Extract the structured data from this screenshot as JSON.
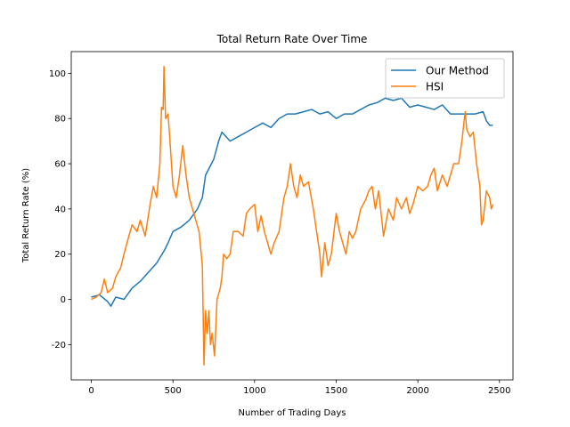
{
  "chart_data": {
    "type": "line",
    "title": "Total Return Rate Over Time",
    "x_label": "Number of Trading Days",
    "y_label": "Total Return Rate (%)",
    "xlim": [
      -123,
      2583
    ],
    "ylim": [
      -35.6,
      109.6
    ],
    "xticks": [
      0,
      500,
      1000,
      1500,
      2000,
      2500
    ],
    "yticks": [
      -20,
      0,
      20,
      40,
      60,
      80,
      100
    ],
    "legend": "upper right",
    "grid": false,
    "series": [
      {
        "name": "Our Method",
        "color": "#1f77b4",
        "x": [
          0,
          50,
          100,
          120,
          150,
          200,
          250,
          300,
          350,
          400,
          450,
          470,
          500,
          550,
          600,
          650,
          680,
          700,
          750,
          780,
          800,
          850,
          900,
          950,
          1000,
          1050,
          1100,
          1150,
          1200,
          1250,
          1300,
          1350,
          1400,
          1450,
          1500,
          1550,
          1600,
          1650,
          1700,
          1750,
          1800,
          1850,
          1900,
          1950,
          2000,
          2050,
          2100,
          2150,
          2200,
          2250,
          2300,
          2350,
          2400,
          2420,
          2440,
          2460
        ],
        "values": [
          1,
          2,
          -1,
          -3,
          1,
          0,
          5,
          8,
          12,
          16,
          22,
          25,
          30,
          32,
          35,
          40,
          45,
          55,
          62,
          70,
          74,
          70,
          72,
          74,
          76,
          78,
          76,
          80,
          82,
          82,
          83,
          84,
          82,
          83,
          80,
          82,
          82,
          84,
          86,
          87,
          89,
          88,
          89,
          85,
          86,
          85,
          84,
          86,
          82,
          82,
          82,
          82,
          83,
          79,
          77,
          77
        ]
      },
      {
        "name": "HSI",
        "color": "#ff7f0e",
        "x": [
          0,
          30,
          60,
          80,
          100,
          130,
          150,
          180,
          200,
          230,
          250,
          280,
          300,
          330,
          360,
          380,
          400,
          420,
          430,
          440,
          445,
          455,
          470,
          480,
          500,
          520,
          540,
          560,
          580,
          600,
          620,
          640,
          660,
          680,
          690,
          700,
          710,
          720,
          730,
          740,
          755,
          770,
          790,
          800,
          810,
          830,
          850,
          870,
          900,
          930,
          950,
          970,
          1000,
          1020,
          1040,
          1060,
          1080,
          1100,
          1120,
          1150,
          1180,
          1200,
          1220,
          1240,
          1260,
          1280,
          1300,
          1330,
          1360,
          1380,
          1400,
          1410,
          1430,
          1450,
          1470,
          1500,
          1520,
          1540,
          1560,
          1580,
          1600,
          1620,
          1650,
          1680,
          1700,
          1720,
          1740,
          1760,
          1790,
          1800,
          1820,
          1850,
          1870,
          1900,
          1930,
          1950,
          1970,
          2000,
          2030,
          2060,
          2080,
          2100,
          2120,
          2150,
          2180,
          2200,
          2220,
          2250,
          2270,
          2290,
          2300,
          2320,
          2340,
          2360,
          2380,
          2390,
          2400,
          2420,
          2440,
          2450,
          2460
        ],
        "values": [
          0,
          1,
          3,
          9,
          3,
          5,
          10,
          14,
          20,
          28,
          33,
          30,
          35,
          28,
          42,
          50,
          45,
          60,
          85,
          84,
          103,
          80,
          82,
          72,
          50,
          45,
          55,
          68,
          55,
          45,
          40,
          35,
          30,
          15,
          -29,
          -5,
          -15,
          -5,
          -20,
          -15,
          -25,
          0,
          5,
          10,
          20,
          18,
          20,
          30,
          30,
          28,
          38,
          40,
          42,
          30,
          37,
          30,
          25,
          20,
          25,
          30,
          45,
          50,
          60,
          50,
          45,
          55,
          50,
          52,
          40,
          30,
          20,
          10,
          25,
          15,
          20,
          38,
          30,
          25,
          20,
          30,
          27,
          30,
          40,
          44,
          48,
          50,
          40,
          48,
          28,
          32,
          40,
          35,
          45,
          40,
          45,
          38,
          42,
          50,
          48,
          50,
          55,
          58,
          48,
          55,
          50,
          55,
          60,
          60,
          70,
          83,
          75,
          72,
          74,
          60,
          50,
          33,
          35,
          48,
          45,
          40,
          42
        ]
      }
    ]
  }
}
